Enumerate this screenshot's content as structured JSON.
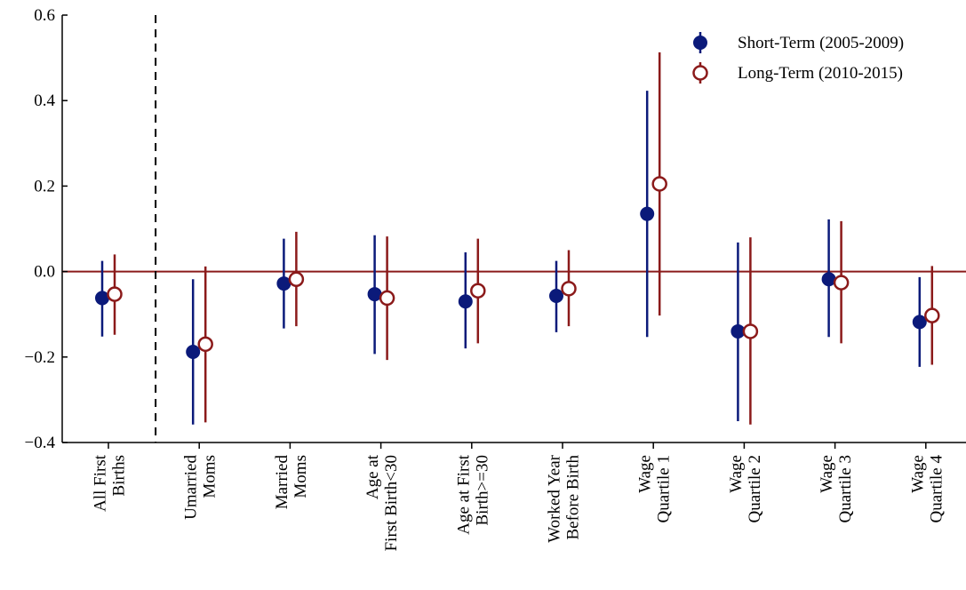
{
  "chart_data": {
    "type": "scatter",
    "title": "",
    "xlabel": "",
    "ylabel": "",
    "ylim": [
      -0.4,
      0.6
    ],
    "y_ticks": [
      "0.6",
      "0.4",
      "0.2",
      "0.0",
      "−0.2",
      "−0.4"
    ],
    "y_tick_values": [
      0.6,
      0.4,
      0.2,
      0.0,
      -0.2,
      -0.4
    ],
    "grid": false,
    "legend_position": "top-right",
    "reference_line": {
      "y": 0.0,
      "color": "#8b1a1a"
    },
    "separator_after_category": 0,
    "categories": [
      [
        "All First",
        "Births"
      ],
      [
        "Umarried",
        "Moms"
      ],
      [
        "Married",
        "Moms"
      ],
      [
        "Age at",
        "First Birth<30"
      ],
      [
        "Age at First",
        "Birth>=30"
      ],
      [
        "Worked Year",
        "Before Birth"
      ],
      [
        "Wage",
        "Quartile 1"
      ],
      [
        "Wage",
        "Quartile 2"
      ],
      [
        "Wage",
        "Quartile 3"
      ],
      [
        "Wage",
        "Quartile 4"
      ]
    ],
    "series": [
      {
        "name": "Short-Term (2005-2009)",
        "color": "#0b1a7a",
        "marker": "filled-circle",
        "values": [
          -0.062,
          -0.188,
          -0.028,
          -0.053,
          -0.07,
          -0.057,
          0.135,
          -0.14,
          -0.018,
          -0.118
        ],
        "lower": [
          -0.152,
          -0.358,
          -0.133,
          -0.193,
          -0.18,
          -0.142,
          -0.153,
          -0.35,
          -0.153,
          -0.223
        ],
        "upper": [
          0.025,
          -0.018,
          0.077,
          0.085,
          0.045,
          0.025,
          0.423,
          0.068,
          0.122,
          -0.013
        ]
      },
      {
        "name": "Long-Term (2010-2015)",
        "color": "#8b1a1a",
        "marker": "open-circle",
        "values": [
          -0.053,
          -0.17,
          -0.018,
          -0.062,
          -0.045,
          -0.04,
          0.205,
          -0.14,
          -0.026,
          -0.103
        ],
        "lower": [
          -0.148,
          -0.353,
          -0.128,
          -0.207,
          -0.168,
          -0.128,
          -0.103,
          -0.358,
          -0.168,
          -0.218
        ],
        "upper": [
          0.04,
          0.012,
          0.093,
          0.082,
          0.077,
          0.05,
          0.513,
          0.08,
          0.118,
          0.013
        ]
      }
    ]
  }
}
